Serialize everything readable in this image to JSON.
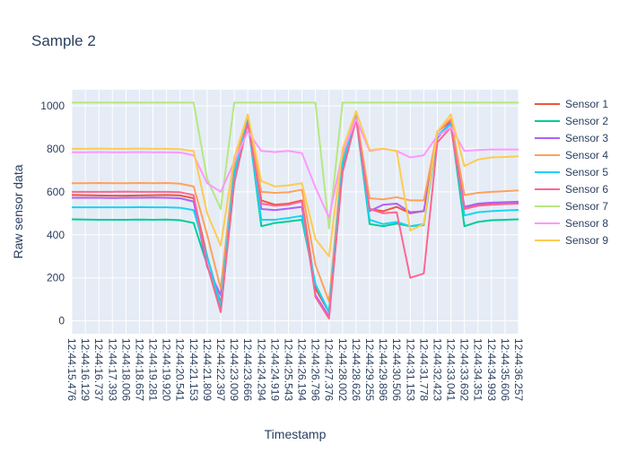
{
  "chart_data": {
    "type": "line",
    "title": "Sample 2",
    "xlabel": "Timestamp",
    "ylabel": "Raw sensor data",
    "ylim": [
      -60,
      1075
    ],
    "yticks": [
      0,
      200,
      400,
      600,
      800,
      1000
    ],
    "grid": true,
    "legend_position": "right",
    "plot_background": "#e5ecf6",
    "x_tick_labels": [
      "12:44:15.476",
      "12:44:16.129",
      "12:44:16.737",
      "12:44:17.393",
      "12:44:18.006",
      "12:44:18.657",
      "12:44:19.281",
      "12:44:19.920",
      "12:44:20.541",
      "12:44:21.153",
      "12:44:21.809",
      "12:44:22.397",
      "12:44:23.009",
      "12:44:23.666",
      "12:44:24.294",
      "12:44:24.919",
      "12:44:25.543",
      "12:44:26.194",
      "12:44:26.796",
      "12:44:27.376",
      "12:44:28.002",
      "12:44:28.626",
      "12:44:29.255",
      "12:44:29.896",
      "12:44:30.506",
      "12:44:31.153",
      "12:44:31.778",
      "12:44:32.423",
      "12:44:33.041",
      "12:44:33.692",
      "12:44:34.351",
      "12:44:34.993",
      "12:44:35.606",
      "12:44:36.257"
    ],
    "x": [
      0,
      1,
      2,
      3,
      4,
      5,
      6,
      7,
      8,
      9,
      10,
      11,
      12,
      13,
      14,
      15,
      16,
      17,
      18,
      19,
      20,
      21,
      22,
      23,
      24,
      25,
      26,
      27,
      28,
      29,
      30,
      31,
      32,
      33
    ],
    "series": [
      {
        "name": "Sensor 1",
        "color": "#ef553b",
        "values": [
          585,
          584,
          583,
          582,
          582,
          583,
          584,
          585,
          583,
          570,
          300,
          80,
          700,
          945,
          560,
          540,
          545,
          560,
          150,
          40,
          750,
          950,
          520,
          510,
          530,
          500,
          510,
          880,
          930,
          520,
          540,
          548,
          550,
          552
        ]
      },
      {
        "name": "Sensor 2",
        "color": "#00cc96",
        "values": [
          472,
          471,
          470,
          470,
          470,
          471,
          470,
          471,
          468,
          455,
          260,
          50,
          680,
          935,
          440,
          455,
          462,
          470,
          170,
          40,
          720,
          945,
          450,
          440,
          452,
          440,
          445,
          860,
          920,
          440,
          460,
          468,
          470,
          472
        ]
      },
      {
        "name": "Sensor 3",
        "color": "#ab63fa",
        "values": [
          572,
          572,
          572,
          571,
          572,
          572,
          573,
          572,
          570,
          555,
          250,
          120,
          690,
          940,
          520,
          515,
          522,
          530,
          120,
          20,
          730,
          955,
          510,
          540,
          545,
          505,
          510,
          850,
          925,
          530,
          545,
          550,
          552,
          554
        ]
      },
      {
        "name": "Sensor 4",
        "color": "#ffa15a",
        "values": [
          640,
          640,
          641,
          640,
          640,
          641,
          640,
          641,
          638,
          625,
          400,
          150,
          720,
          950,
          600,
          595,
          598,
          610,
          260,
          90,
          760,
          960,
          570,
          565,
          575,
          560,
          560,
          880,
          940,
          585,
          595,
          600,
          603,
          606
        ]
      },
      {
        "name": "Sensor 5",
        "color": "#19d3f3",
        "values": [
          528,
          528,
          528,
          528,
          528,
          529,
          528,
          528,
          526,
          515,
          300,
          70,
          690,
          930,
          470,
          470,
          478,
          488,
          170,
          40,
          735,
          945,
          470,
          450,
          460,
          440,
          450,
          860,
          915,
          490,
          505,
          510,
          513,
          516
        ]
      },
      {
        "name": "Sensor 6",
        "color": "#ff6692",
        "values": [
          600,
          600,
          600,
          600,
          601,
          600,
          600,
          600,
          598,
          585,
          260,
          40,
          640,
          920,
          545,
          535,
          540,
          555,
          110,
          10,
          690,
          935,
          520,
          500,
          505,
          200,
          220,
          830,
          900,
          520,
          535,
          540,
          543,
          545
        ]
      },
      {
        "name": "Sensor 7",
        "color": "#b6e880",
        "values": [
          1015,
          1015,
          1015,
          1015,
          1015,
          1015,
          1015,
          1015,
          1015,
          1015,
          660,
          520,
          1015,
          1015,
          1015,
          1015,
          1015,
          1015,
          1015,
          430,
          1015,
          1015,
          1015,
          1015,
          1015,
          1015,
          1015,
          1015,
          1015,
          1015,
          1015,
          1015,
          1015,
          1015
        ]
      },
      {
        "name": "Sensor 8",
        "color": "#ff97ff",
        "values": [
          784,
          784,
          785,
          784,
          784,
          785,
          784,
          784,
          783,
          770,
          640,
          600,
          740,
          880,
          790,
          785,
          790,
          780,
          620,
          480,
          780,
          940,
          790,
          800,
          790,
          760,
          770,
          860,
          900,
          790,
          795,
          797,
          797,
          797
        ]
      },
      {
        "name": "Sensor 9",
        "color": "#fecb52",
        "values": [
          800,
          800,
          801,
          800,
          800,
          801,
          800,
          800,
          798,
          790,
          500,
          350,
          760,
          960,
          650,
          625,
          630,
          640,
          380,
          300,
          800,
          975,
          795,
          800,
          790,
          420,
          450,
          880,
          960,
          720,
          750,
          760,
          762,
          765
        ]
      }
    ]
  }
}
